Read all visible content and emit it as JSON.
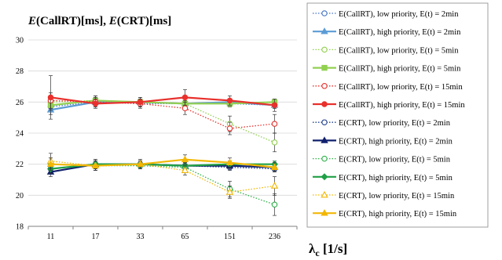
{
  "chart_data": {
    "type": "line",
    "title_parts": [
      "E",
      "(CallRT)[ms], ",
      "E",
      "(CRT)[ms]"
    ],
    "xlabel_main": "λ",
    "xlabel_sub": "c",
    "xlabel_unit": " [1/s]",
    "categories": [
      "11",
      "17",
      "33",
      "65",
      "151",
      "236"
    ],
    "ylim": [
      18,
      30
    ],
    "yticks": [
      "18",
      "20",
      "22",
      "24",
      "26",
      "28",
      "30"
    ],
    "grid": true,
    "legend_position": "right",
    "series": [
      {
        "name": "E(CallRT), low priority, E(t) = 2min",
        "values": [
          25.7,
          26.0,
          25.9,
          25.9,
          25.9,
          25.8
        ],
        "err": [
          0.3,
          0.3,
          0.2,
          0.2,
          0.2,
          0.2
        ],
        "color": "#4472c4",
        "dash": true,
        "marker": "circle-open"
      },
      {
        "name": "E(CallRT), high priority, E(t) = 2min",
        "values": [
          25.5,
          26.0,
          26.0,
          25.9,
          26.0,
          25.8
        ],
        "err": [
          0.3,
          0.3,
          0.2,
          0.2,
          0.2,
          0.2
        ],
        "color": "#5b9bd5",
        "dash": false,
        "marker": "triangle"
      },
      {
        "name": "E(CallRT), low priority, E(t) = 5min",
        "values": [
          26.0,
          26.1,
          26.0,
          25.9,
          24.6,
          23.4
        ],
        "err": [
          0.4,
          0.3,
          0.3,
          0.3,
          0.5,
          0.6
        ],
        "color": "#92d050",
        "dash": true,
        "marker": "circle-open"
      },
      {
        "name": "E(CallRT), high priority, E(t) = 5min",
        "values": [
          25.8,
          26.1,
          26.0,
          25.9,
          25.9,
          26.0
        ],
        "err": [
          0.3,
          0.3,
          0.2,
          0.2,
          0.2,
          0.2
        ],
        "color": "#92d050",
        "dash": false,
        "marker": "square"
      },
      {
        "name": "E(CallRT), low priority, E(t) = 15min",
        "values": [
          26.1,
          26.0,
          25.9,
          25.6,
          24.3,
          24.6
        ],
        "err": [
          0.5,
          0.3,
          0.3,
          0.4,
          0.4,
          0.6
        ],
        "color": "#e8302c",
        "dash": true,
        "marker": "circle-open"
      },
      {
        "name": "E(CallRT), high priority, E(t) = 15min",
        "values": [
          26.3,
          25.9,
          26.0,
          26.3,
          26.1,
          25.8
        ],
        "err": [
          1.4,
          0.3,
          0.3,
          0.5,
          0.3,
          0.4
        ],
        "color": "#e8302c",
        "dash": false,
        "marker": "circle"
      },
      {
        "name": "E(CRT), low priority, E(t) = 2min",
        "values": [
          21.7,
          22.0,
          22.0,
          21.9,
          21.8,
          21.7
        ],
        "err": [
          0.3,
          0.3,
          0.2,
          0.2,
          0.2,
          0.2
        ],
        "color": "#1f3e8c",
        "dash": true,
        "marker": "circle-open"
      },
      {
        "name": "E(CRT), high priority, E(t) = 2min",
        "values": [
          21.5,
          22.0,
          22.0,
          21.9,
          21.9,
          21.8
        ],
        "err": [
          0.3,
          0.3,
          0.2,
          0.2,
          0.2,
          0.2
        ],
        "color": "#10206e",
        "dash": false,
        "marker": "triangle"
      },
      {
        "name": "E(CRT), low priority, E(t) = 5min",
        "values": [
          22.0,
          21.9,
          21.9,
          21.8,
          20.4,
          19.4
        ],
        "err": [
          0.4,
          0.3,
          0.2,
          0.3,
          0.5,
          0.7
        ],
        "color": "#2fb24a",
        "dash": true,
        "marker": "circle-open"
      },
      {
        "name": "E(CRT), high priority, E(t) = 5min",
        "values": [
          21.7,
          22.0,
          22.0,
          21.9,
          22.0,
          22.0
        ],
        "err": [
          0.3,
          0.3,
          0.2,
          0.2,
          0.2,
          0.2
        ],
        "color": "#1fa046",
        "dash": false,
        "marker": "diamond"
      },
      {
        "name": "E(CRT), low priority, E(t) = 15min",
        "values": [
          22.2,
          21.9,
          22.0,
          21.6,
          20.2,
          20.6
        ],
        "err": [
          0.5,
          0.3,
          0.3,
          0.3,
          0.4,
          0.6
        ],
        "color": "#f2b705",
        "dash": true,
        "marker": "triangle-open"
      },
      {
        "name": "E(CRT), high priority, E(t) = 15min",
        "values": [
          22.0,
          21.9,
          22.0,
          22.3,
          22.1,
          21.8
        ],
        "err": [
          0.4,
          0.3,
          0.3,
          0.3,
          0.3,
          0.3
        ],
        "color": "#f2b705",
        "dash": false,
        "marker": "triangle"
      }
    ]
  }
}
